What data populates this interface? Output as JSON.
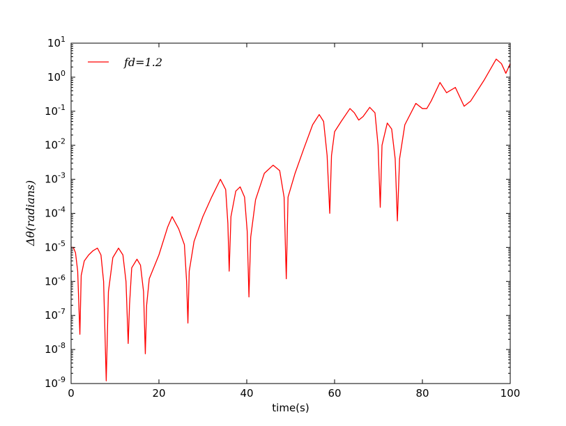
{
  "chart_data": {
    "type": "line",
    "title": "",
    "xlabel": "time(s)",
    "ylabel": "Δθ(radians)",
    "xlim": [
      0,
      100
    ],
    "ylim": [
      1e-09,
      10
    ],
    "yscale": "log",
    "grid": false,
    "legend_position": "upper-left",
    "x_ticks": [
      "0",
      "20",
      "40",
      "60",
      "80",
      "100"
    ],
    "y_ticks": [
      {
        "base": "10",
        "exp": "-9"
      },
      {
        "base": "10",
        "exp": "-8"
      },
      {
        "base": "10",
        "exp": "-7"
      },
      {
        "base": "10",
        "exp": "-6"
      },
      {
        "base": "10",
        "exp": "-5"
      },
      {
        "base": "10",
        "exp": "-4"
      },
      {
        "base": "10",
        "exp": "-3"
      },
      {
        "base": "10",
        "exp": "-2"
      },
      {
        "base": "10",
        "exp": "-1"
      },
      {
        "base": "10",
        "exp": "0"
      },
      {
        "base": "10",
        "exp": "1"
      }
    ],
    "series": [
      {
        "name": "fd=1.2",
        "color": "#ff0000",
        "points": [
          [
            0.0,
            1e-05
          ],
          [
            0.5,
            1e-05
          ],
          [
            1.0,
            7e-06
          ],
          [
            1.5,
            2e-06
          ],
          [
            2.0,
            2.8e-08
          ],
          [
            2.3,
            1.5e-06
          ],
          [
            3.0,
            4e-06
          ],
          [
            4.0,
            6e-06
          ],
          [
            5.0,
            8e-06
          ],
          [
            6.0,
            9.5e-06
          ],
          [
            6.8,
            6e-06
          ],
          [
            7.4,
            1e-06
          ],
          [
            8.0,
            1.2e-09
          ],
          [
            8.5,
            5e-07
          ],
          [
            9.5,
            5e-06
          ],
          [
            10.8,
            9.5e-06
          ],
          [
            11.8,
            6e-06
          ],
          [
            12.5,
            1e-06
          ],
          [
            13.0,
            1.5e-08
          ],
          [
            13.3,
            2e-07
          ],
          [
            13.8,
            2.5e-06
          ],
          [
            15.0,
            4.5e-06
          ],
          [
            15.8,
            3e-06
          ],
          [
            16.5,
            5e-07
          ],
          [
            16.9,
            7.5e-09
          ],
          [
            17.2,
            2e-07
          ],
          [
            17.8,
            1.2e-06
          ],
          [
            20.0,
            6e-06
          ],
          [
            22.0,
            4e-05
          ],
          [
            23.0,
            8e-05
          ],
          [
            24.5,
            3.5e-05
          ],
          [
            25.8,
            1.2e-05
          ],
          [
            26.3,
            1e-06
          ],
          [
            26.6,
            6e-08
          ],
          [
            26.9,
            2e-06
          ],
          [
            28.0,
            1.5e-05
          ],
          [
            30.0,
            8e-05
          ],
          [
            32.0,
            0.0003
          ],
          [
            34.0,
            0.001
          ],
          [
            35.2,
            0.0005
          ],
          [
            35.7,
            5e-05
          ],
          [
            36.0,
            2e-06
          ],
          [
            36.4,
            8e-05
          ],
          [
            37.5,
            0.00045
          ],
          [
            38.5,
            0.0006
          ],
          [
            39.5,
            0.0003
          ],
          [
            40.1,
            3e-05
          ],
          [
            40.5,
            3.5e-07
          ],
          [
            40.9,
            2e-05
          ],
          [
            42.0,
            0.00025
          ],
          [
            44.0,
            0.0015
          ],
          [
            46.0,
            0.0026
          ],
          [
            47.5,
            0.0018
          ],
          [
            48.5,
            0.0003
          ],
          [
            49.0,
            1.2e-06
          ],
          [
            49.4,
            0.0003
          ],
          [
            51.0,
            0.0015
          ],
          [
            53.0,
            0.008
          ],
          [
            55.0,
            0.04
          ],
          [
            56.5,
            0.08
          ],
          [
            57.5,
            0.05
          ],
          [
            58.3,
            0.005
          ],
          [
            58.9,
            0.0001
          ],
          [
            59.3,
            0.005
          ],
          [
            60.0,
            0.025
          ],
          [
            61.5,
            0.05
          ],
          [
            63.5,
            0.12
          ],
          [
            64.5,
            0.09
          ],
          [
            65.5,
            0.055
          ],
          [
            66.5,
            0.07
          ],
          [
            68.0,
            0.13
          ],
          [
            69.2,
            0.09
          ],
          [
            69.9,
            0.01
          ],
          [
            70.4,
            0.00015
          ],
          [
            70.8,
            0.01
          ],
          [
            72.0,
            0.045
          ],
          [
            73.0,
            0.03
          ],
          [
            73.8,
            0.004
          ],
          [
            74.3,
            6e-05
          ],
          [
            74.8,
            0.004
          ],
          [
            76.0,
            0.04
          ],
          [
            78.5,
            0.17
          ],
          [
            80.0,
            0.12
          ],
          [
            81.0,
            0.12
          ],
          [
            82.0,
            0.2
          ],
          [
            84.0,
            0.7
          ],
          [
            85.5,
            0.35
          ],
          [
            87.5,
            0.5
          ],
          [
            89.5,
            0.14
          ],
          [
            91.0,
            0.2
          ],
          [
            94.0,
            0.8
          ],
          [
            96.8,
            3.4
          ],
          [
            98.0,
            2.5
          ],
          [
            99.0,
            1.3
          ],
          [
            100.0,
            2.5
          ]
        ]
      }
    ]
  }
}
